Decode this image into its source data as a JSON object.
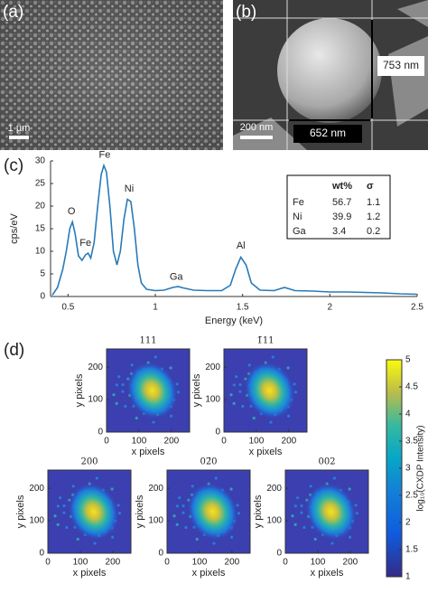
{
  "panels": {
    "a": {
      "label": "(a)",
      "scale_bar": "1 µm"
    },
    "b": {
      "label": "(b)",
      "height_label": "753 nm",
      "width_label": "652 nm",
      "scale_bar": "200 nm"
    },
    "c": {
      "label": "(c)"
    },
    "d": {
      "label": "(d)"
    }
  },
  "chart_data": [
    {
      "type": "line",
      "xlabel": "Energy (keV)",
      "ylabel": "cps/eV",
      "color": "#2a7ab8",
      "x": [
        0.41,
        0.44,
        0.47,
        0.49,
        0.51,
        0.525,
        0.54,
        0.56,
        0.58,
        0.6,
        0.615,
        0.63,
        0.65,
        0.67,
        0.69,
        0.705,
        0.72,
        0.74,
        0.76,
        0.78,
        0.8,
        0.82,
        0.84,
        0.86,
        0.88,
        0.9,
        0.92,
        0.95,
        1.0,
        1.05,
        1.1,
        1.13,
        1.16,
        1.22,
        1.3,
        1.38,
        1.43,
        1.46,
        1.49,
        1.52,
        1.55,
        1.6,
        1.68,
        1.74,
        1.8,
        1.9,
        2.0,
        2.1,
        2.2,
        2.3,
        2.4,
        2.5
      ],
      "values": [
        0.3,
        2,
        6,
        10,
        15,
        16.5,
        14,
        9,
        8,
        9.2,
        9.6,
        8.5,
        12,
        20,
        27,
        29,
        27.5,
        20,
        10,
        7,
        10,
        17,
        21.5,
        21,
        15,
        7,
        3,
        1.6,
        1.3,
        1.4,
        2.0,
        2.2,
        1.9,
        1.4,
        1.3,
        1.3,
        2.5,
        6,
        8.7,
        7,
        3,
        1.4,
        1.3,
        2.0,
        1.3,
        1.2,
        1.0,
        1.0,
        0.9,
        0.8,
        0.6,
        0.5
      ],
      "xlim": [
        0.4,
        2.5
      ],
      "ylim": [
        0,
        30
      ],
      "xticks": [
        0.5,
        1,
        1.5,
        2,
        2.5
      ],
      "yticks": [
        0,
        5,
        10,
        15,
        20,
        25,
        30
      ],
      "annotations": [
        "O",
        "Fe",
        "Fe",
        "Ni",
        "Ga",
        "Al"
      ],
      "table": {
        "header": [
          "wt%",
          "σ"
        ],
        "rows": [
          [
            "Fe",
            "56.7",
            "1.1"
          ],
          [
            "Ni",
            "39.9",
            "1.2"
          ],
          [
            "Ga",
            "3.4",
            "0.2"
          ]
        ]
      }
    },
    {
      "type": "image",
      "title": "111",
      "xlabel": "x pixels",
      "ylabel": "y pixels",
      "xlim": [
        0,
        256
      ],
      "ylim": [
        0,
        256
      ],
      "xticks": [
        0,
        100,
        200
      ],
      "yticks": [
        0,
        100,
        200
      ]
    },
    {
      "type": "image",
      "title": "1̄11",
      "xlabel": "x pixels",
      "ylabel": "y pixels",
      "xlim": [
        0,
        256
      ],
      "ylim": [
        0,
        256
      ],
      "xticks": [
        0,
        100,
        200
      ],
      "yticks": [
        0,
        100,
        200
      ]
    },
    {
      "type": "image",
      "title": "200",
      "xlabel": "x pixels",
      "ylabel": "y pixels",
      "xlim": [
        0,
        256
      ],
      "ylim": [
        0,
        256
      ],
      "xticks": [
        0,
        100,
        200
      ],
      "yticks": [
        0,
        100,
        200
      ]
    },
    {
      "type": "image",
      "title": "02̄0",
      "xlabel": "x pixels",
      "ylabel": "y pixels",
      "xlim": [
        0,
        256
      ],
      "ylim": [
        0,
        256
      ],
      "xticks": [
        0,
        100,
        200
      ],
      "yticks": [
        0,
        100,
        200
      ]
    },
    {
      "type": "image",
      "title": "002",
      "xlabel": "x pixels",
      "ylabel": "y pixels",
      "xlim": [
        0,
        256
      ],
      "ylim": [
        0,
        256
      ],
      "xticks": [
        0,
        100,
        200
      ],
      "yticks": [
        0,
        100,
        200
      ]
    },
    {
      "type": "colorbar",
      "label": "log₁₀(CXDP Intensity)",
      "ylim": [
        1,
        5
      ],
      "yticks": [
        1,
        1.5,
        2,
        2.5,
        3,
        3.5,
        4,
        4.5,
        5
      ]
    }
  ]
}
